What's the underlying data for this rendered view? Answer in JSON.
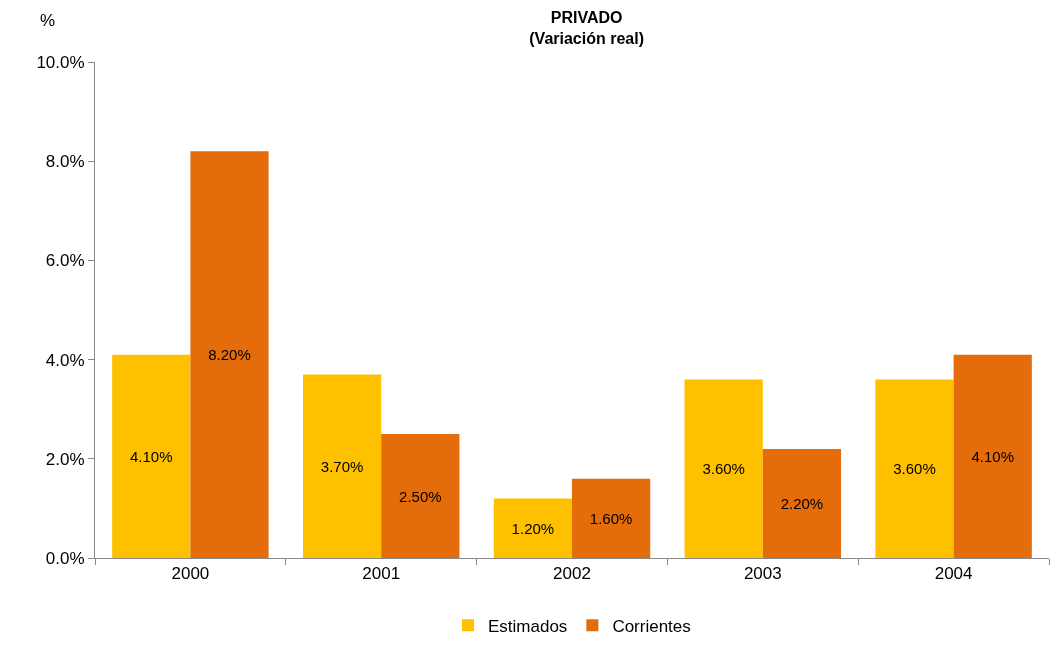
{
  "chart_data": {
    "type": "bar",
    "title": "PRIVADO",
    "subtitle": "(Variación real)",
    "ylabel": "%",
    "categories": [
      "2000",
      "2001",
      "2002",
      "2003",
      "2004"
    ],
    "series": [
      {
        "name": "Estimados",
        "color": "#ffc000",
        "values": [
          4.1,
          3.7,
          1.2,
          3.6,
          3.6
        ],
        "value_labels": [
          "4.10%",
          "3.70%",
          "1.20%",
          "3.60%",
          "3.60%"
        ]
      },
      {
        "name": "Corrientes",
        "color": "#e46c0a",
        "values": [
          8.2,
          2.5,
          1.6,
          2.2,
          4.1
        ],
        "value_labels": [
          "8.20%",
          "2.50%",
          "1.60%",
          "2.20%",
          "4.10%"
        ]
      }
    ],
    "ylim": [
      0,
      10
    ],
    "yticks": [
      {
        "value": 0,
        "label": "0.0%"
      },
      {
        "value": 2,
        "label": "2.0%"
      },
      {
        "value": 4,
        "label": "4.0%"
      },
      {
        "value": 6,
        "label": "6.0%"
      },
      {
        "value": 8,
        "label": "8.0%"
      },
      {
        "value": 10,
        "label": "10.0%"
      }
    ],
    "grid": false,
    "legend": "bottom"
  }
}
